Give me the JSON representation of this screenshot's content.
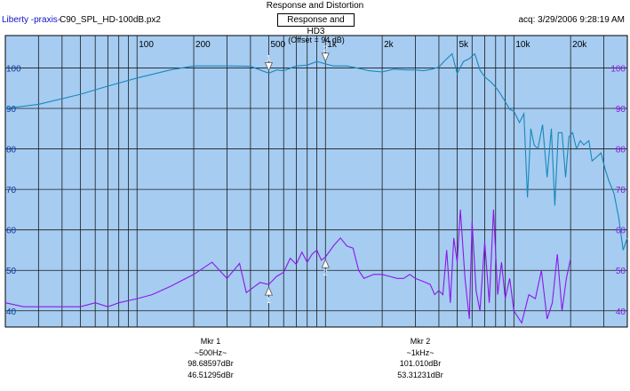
{
  "header": {
    "title": "Response and Distortion",
    "app_name": "Liberty -praxis-",
    "file_name": "C90_SPL_HD-100dB.px2",
    "mode": "Response and HD3",
    "acquired": "acq: 3/29/2006 9:28:19 AM"
  },
  "offset_label": "(Offset = 94 dB)",
  "markers": [
    {
      "title": "Mkr 1",
      "freq": "~500Hz~",
      "value1": "98.68597dBr",
      "value2": "46.51295dBr"
    },
    {
      "title": "Mkr 2",
      "freq": "~1kHz~",
      "value1": "101.010dBr",
      "value2": "53.31231dBr"
    }
  ],
  "chart_data": {
    "type": "line",
    "x_scale": "log",
    "xlim": [
      20,
      40000
    ],
    "ylim": [
      36,
      108
    ],
    "x_tick_labels": [
      {
        "x": 100,
        "label": "100"
      },
      {
        "x": 200,
        "label": "200"
      },
      {
        "x": 500,
        "label": "500"
      },
      {
        "x": 1000,
        "label": "1k"
      },
      {
        "x": 2000,
        "label": "2k"
      },
      {
        "x": 5000,
        "label": "5k"
      },
      {
        "x": 10000,
        "label": "10k"
      },
      {
        "x": 20000,
        "label": "20k"
      }
    ],
    "y_ticks": [
      40,
      50,
      60,
      70,
      80,
      90,
      100
    ],
    "grid": true,
    "markers_on_plot": [
      {
        "id": "1",
        "x": 500,
        "y_response": 98.69,
        "y_hd3": 46.51
      },
      {
        "id": "2",
        "x": 1000,
        "y_response": 101.01,
        "y_hd3": 53.31
      }
    ],
    "series": [
      {
        "color": "#1888b8",
        "x": [
          20,
          30,
          50,
          70,
          100,
          150,
          200,
          250,
          300,
          400,
          450,
          500,
          550,
          600,
          700,
          800,
          900,
          1000,
          1100,
          1300,
          1500,
          1700,
          2000,
          2300,
          2700,
          3000,
          3300,
          3600,
          4000,
          4300,
          4700,
          5000,
          5400,
          5800,
          6200,
          6600,
          7000,
          7600,
          8200,
          8800,
          9500,
          10000,
          10700,
          11300,
          11800,
          12300,
          12800,
          13400,
          14200,
          15000,
          15800,
          16500,
          17200,
          18000,
          18800,
          19600,
          20500,
          21500,
          22500,
          23500,
          25000,
          26000,
          27500,
          29000,
          30500,
          32000,
          34000,
          36000,
          38000,
          40000
        ],
        "y": [
          90,
          91,
          93.5,
          95.5,
          97.5,
          99.5,
          100.5,
          100.5,
          100.5,
          100.4,
          99.5,
          98.7,
          99.5,
          99.3,
          100.5,
          100.7,
          101.6,
          101,
          100.5,
          100.5,
          99.9,
          99.3,
          99,
          99.7,
          99.5,
          99.5,
          99.3,
          99.6,
          100.2,
          101.8,
          103.5,
          98.6,
          101.6,
          102.3,
          103.5,
          99.5,
          97.8,
          96.4,
          94.6,
          92.4,
          89.8,
          89.3,
          86.5,
          88.7,
          68,
          85,
          81,
          80,
          86,
          73,
          85,
          66,
          84,
          84,
          73,
          83,
          84,
          80,
          82,
          81,
          82,
          77,
          78,
          79,
          75,
          72,
          69,
          63,
          55,
          58
        ]
      },
      {
        "color": "#8a18e8",
        "x": [
          20,
          25,
          30,
          40,
          50,
          60,
          70,
          80,
          100,
          120,
          150,
          200,
          250,
          300,
          350,
          380,
          420,
          450,
          500,
          550,
          600,
          650,
          700,
          750,
          800,
          850,
          900,
          950,
          1000,
          1100,
          1200,
          1300,
          1400,
          1500,
          1600,
          1800,
          2000,
          2200,
          2400,
          2600,
          2800,
          3000,
          3200,
          3400,
          3600,
          3800,
          4000,
          4200,
          4400,
          4600,
          4800,
          5000,
          5200,
          5500,
          5800,
          6000,
          6300,
          6600,
          7000,
          7400,
          7800,
          8200,
          8600,
          9000,
          9500,
          10000,
          11000,
          12000,
          13000,
          14000,
          15000,
          16000,
          17000,
          18000,
          19000,
          20000
        ],
        "y": [
          42,
          41,
          41,
          41,
          41,
          42,
          41,
          42,
          43,
          44,
          46,
          49,
          52,
          48,
          51.7,
          44.5,
          46,
          47,
          46.5,
          48.5,
          49.5,
          53,
          51.5,
          54.5,
          52,
          54,
          55,
          52.5,
          53.3,
          56,
          58,
          56,
          55.5,
          50,
          48,
          49,
          49,
          48.5,
          48,
          48,
          49,
          48,
          47.5,
          47,
          46.5,
          44,
          45,
          44,
          55,
          42,
          58,
          52,
          65,
          48,
          38,
          62,
          45,
          40,
          57,
          42,
          65,
          44,
          52,
          43,
          48,
          40,
          37,
          44,
          43,
          50,
          38,
          42,
          54,
          40,
          48,
          53
        ]
      }
    ]
  }
}
